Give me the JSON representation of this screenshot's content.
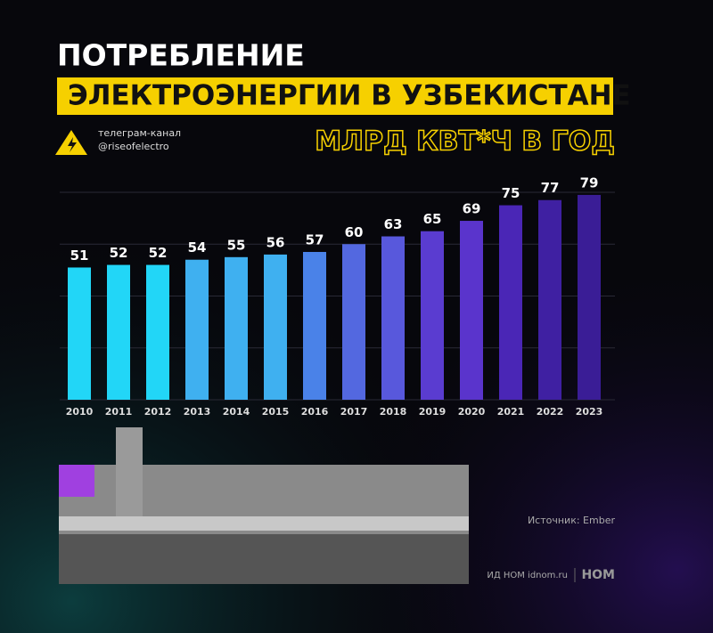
{
  "chart_data": {
    "type": "bar",
    "title": "ПОТРЕБЛЕНИЕ",
    "title_highlight": "ЭЛЕКТРОЭНЕРГИИ В УЗБЕКИСТАНЕ",
    "subtitle": "МЛРД КВТ*Ч В ГОД",
    "channel_label": "телеграм-канал",
    "channel_handle": "@riseofelectro",
    "source": "Источник: Ember",
    "footer": "ИД НОМ idnom.ru",
    "logo": "НОМ",
    "categories": [
      "2010",
      "2011",
      "2012",
      "2013",
      "2014",
      "2015",
      "2016",
      "2017",
      "2018",
      "2019",
      "2020",
      "2021",
      "2022",
      "2023"
    ],
    "values": [
      51,
      52,
      52,
      54,
      55,
      56,
      57,
      60,
      63,
      65,
      69,
      75,
      77,
      79
    ],
    "colors": [
      "#22d6f7",
      "#22d6f7",
      "#22d6f7",
      "#3fb0f0",
      "#3fb0f0",
      "#3fb0f0",
      "#4a82e8",
      "#5368e0",
      "#5858dc",
      "#5a3cd0",
      "#5a34cc",
      "#4a26b6",
      "#3f20a2",
      "#3a1d96"
    ],
    "ylim": [
      0,
      80
    ],
    "yticks": [
      0,
      20,
      40,
      60,
      80
    ],
    "grid": true
  }
}
